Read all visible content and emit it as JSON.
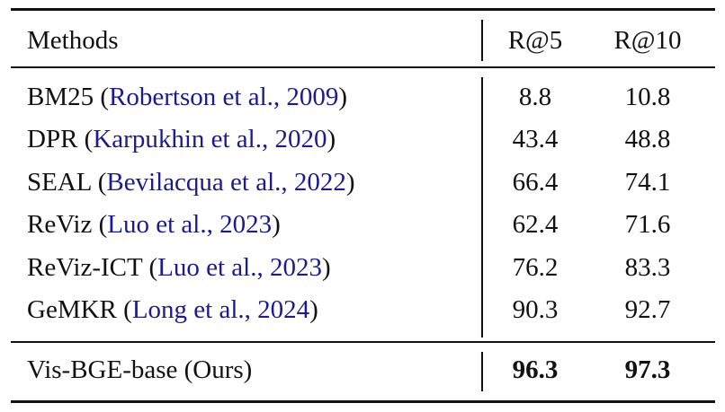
{
  "header": {
    "methods": "Methods",
    "r5": "R@5",
    "r10": "R@10"
  },
  "rows": [
    {
      "method": "BM25",
      "citation": "Robertson et al., 2009",
      "r5": "8.8",
      "r10": "10.8"
    },
    {
      "method": "DPR",
      "citation": "Karpukhin et al., 2020",
      "r5": "43.4",
      "r10": "48.8"
    },
    {
      "method": "SEAL",
      "citation": "Bevilacqua et al., 2022",
      "r5": "66.4",
      "r10": "74.1"
    },
    {
      "method": "ReViz",
      "citation": "Luo et al., 2023",
      "r5": "62.4",
      "r10": "71.6"
    },
    {
      "method": "ReViz-ICT",
      "citation": "Luo et al., 2023",
      "r5": "76.2",
      "r10": "83.3"
    },
    {
      "method": "GeMKR",
      "citation": "Long et al., 2024",
      "r5": "90.3",
      "r10": "92.7"
    }
  ],
  "ours": {
    "method": "Vis-BGE-base (Ours)",
    "r5": "96.3",
    "r10": "97.3"
  },
  "colors": {
    "citation": "#1b1b8f",
    "text": "#111111"
  }
}
